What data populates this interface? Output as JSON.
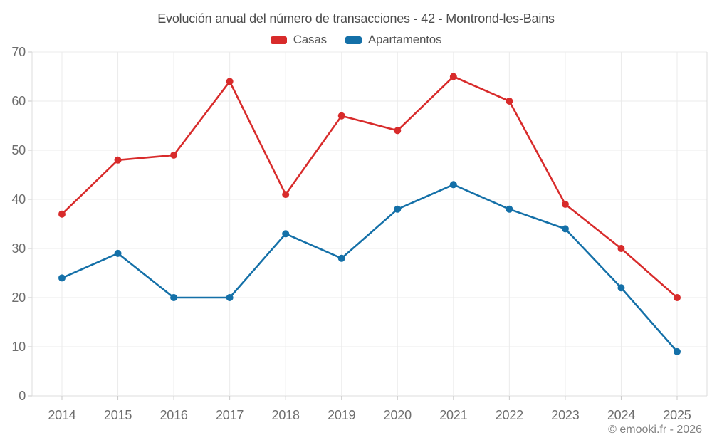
{
  "watermark": "© emooki.fr - 2026",
  "chart_data": {
    "type": "line",
    "title": "Evolución anual del número de transacciones - 42 - Montrond-les-Bains",
    "categories": [
      "2014",
      "2015",
      "2016",
      "2017",
      "2018",
      "2019",
      "2020",
      "2021",
      "2022",
      "2023",
      "2024",
      "2025"
    ],
    "series": [
      {
        "name": "Casas",
        "color": "#d82b2b",
        "values": [
          37,
          48,
          49,
          64,
          41,
          57,
          54,
          65,
          60,
          39,
          30,
          20
        ]
      },
      {
        "name": "Apartamentos",
        "color": "#1470a8",
        "values": [
          24,
          29,
          20,
          20,
          33,
          28,
          38,
          43,
          38,
          34,
          22,
          9
        ]
      }
    ],
    "xlabel": "",
    "ylabel": "",
    "ylim": [
      0,
      70
    ],
    "ytick_step": 10,
    "grid": true,
    "legend_position": "top",
    "marker": "circle"
  },
  "style": {
    "grid_color": "#ebebeb",
    "axis_color": "#dcdcdc",
    "tick_color": "#c9c9c9",
    "axis_label_color": "#6e6e6e",
    "title_color": "#4c4c4c",
    "legend_text_color": "#555555",
    "watermark_color": "#828282",
    "background": "#ffffff"
  }
}
